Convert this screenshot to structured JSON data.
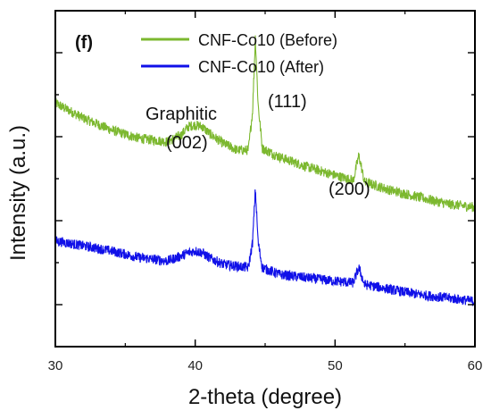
{
  "chart_data": {
    "type": "line",
    "panel_label": "(f)",
    "xlabel": "2-theta (degree)",
    "ylabel": "Intensity (a.u.)",
    "xlim": [
      30,
      60
    ],
    "ylim": [
      0,
      1
    ],
    "x_ticks": [
      "30",
      "40",
      "50",
      "60"
    ],
    "y_ticks_labeled": false,
    "legend_position": "top-center",
    "annotations": {
      "graphitic_line1": "Graphitic",
      "graphitic_line2": "(002)",
      "peak_111": "(111)",
      "peak_200": "(200)"
    },
    "series": [
      {
        "name": "CNF-Co10 (Before)",
        "color": "#7cb82f",
        "points": [
          [
            30,
            0.725
          ],
          [
            32,
            0.68
          ],
          [
            34,
            0.645
          ],
          [
            36,
            0.62
          ],
          [
            38,
            0.61
          ],
          [
            39,
            0.63
          ],
          [
            39.5,
            0.655
          ],
          [
            40,
            0.66
          ],
          [
            40.5,
            0.655
          ],
          [
            41,
            0.635
          ],
          [
            42,
            0.605
          ],
          [
            43,
            0.585
          ],
          [
            43.8,
            0.585
          ],
          [
            44.1,
            0.7
          ],
          [
            44.3,
            0.92
          ],
          [
            44.5,
            0.72
          ],
          [
            44.8,
            0.59
          ],
          [
            46,
            0.565
          ],
          [
            48,
            0.535
          ],
          [
            50,
            0.51
          ],
          [
            51.3,
            0.495
          ],
          [
            51.7,
            0.57
          ],
          [
            52.1,
            0.49
          ],
          [
            54,
            0.465
          ],
          [
            56,
            0.445
          ],
          [
            58,
            0.425
          ],
          [
            60,
            0.415
          ]
        ]
      },
      {
        "name": "CNF-Co10 (After)",
        "color": "#1010e8",
        "points": [
          [
            30,
            0.315
          ],
          [
            32,
            0.3
          ],
          [
            34,
            0.285
          ],
          [
            36,
            0.265
          ],
          [
            38,
            0.255
          ],
          [
            39,
            0.27
          ],
          [
            39.5,
            0.28
          ],
          [
            40,
            0.285
          ],
          [
            40.5,
            0.28
          ],
          [
            41,
            0.265
          ],
          [
            42,
            0.245
          ],
          [
            43.8,
            0.235
          ],
          [
            44.1,
            0.31
          ],
          [
            44.3,
            0.47
          ],
          [
            44.5,
            0.31
          ],
          [
            44.8,
            0.235
          ],
          [
            46,
            0.215
          ],
          [
            48,
            0.205
          ],
          [
            50,
            0.195
          ],
          [
            51.3,
            0.19
          ],
          [
            51.7,
            0.235
          ],
          [
            52.1,
            0.185
          ],
          [
            54,
            0.17
          ],
          [
            56,
            0.155
          ],
          [
            58,
            0.145
          ],
          [
            60,
            0.135
          ]
        ]
      }
    ]
  }
}
